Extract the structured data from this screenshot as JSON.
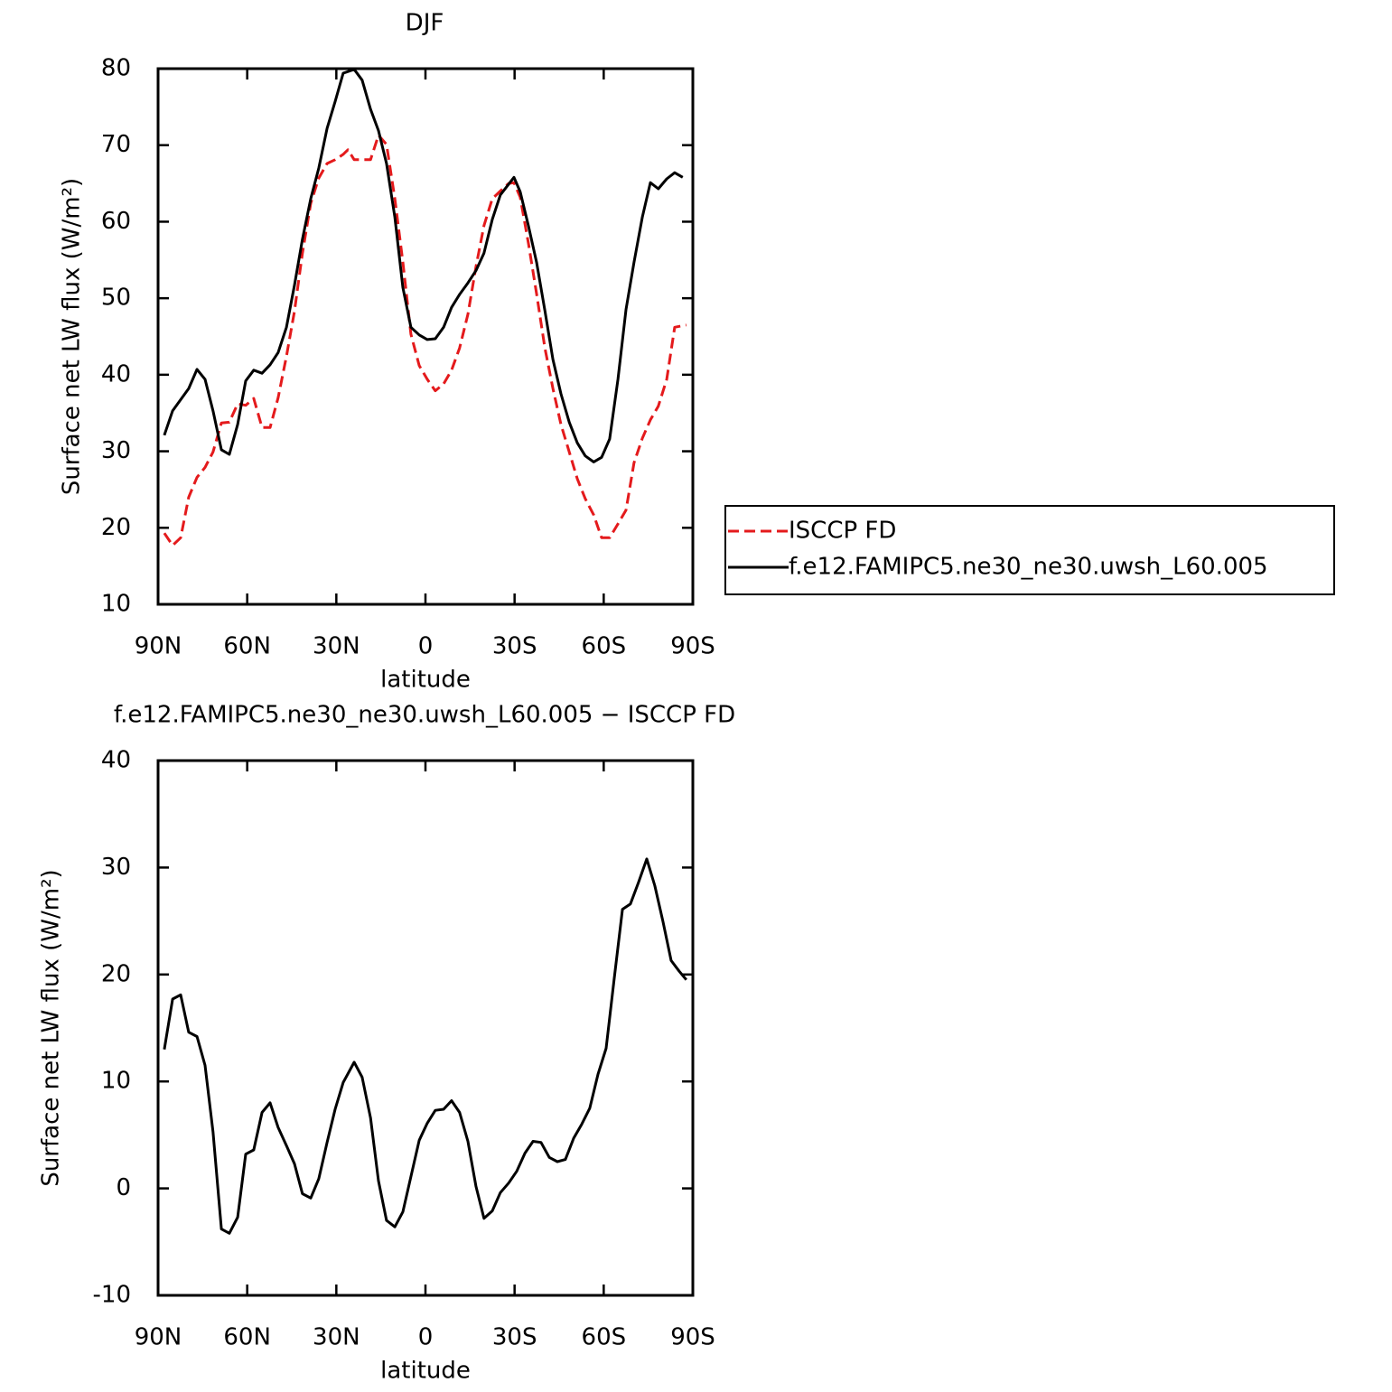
{
  "chart_data": [
    {
      "type": "line",
      "title": "DJF",
      "xlabel": "latitude",
      "ylabel": "Surface net LW flux (W/m²)",
      "xlim": [
        90,
        -90
      ],
      "xticks": [
        {
          "value": 90,
          "label": "90N"
        },
        {
          "value": 60,
          "label": "60N"
        },
        {
          "value": 30,
          "label": "30N"
        },
        0,
        {
          "value": -30,
          "label": "30S"
        },
        {
          "value": -60,
          "label": "60S"
        },
        {
          "value": -90,
          "label": "90S"
        }
      ],
      "ylim": [
        10,
        80
      ],
      "yticks": [
        10,
        20,
        30,
        40,
        50,
        60,
        70,
        80
      ],
      "legend": "right",
      "series": [
        {
          "name": "ISCCP FD",
          "color": "#e41a1c",
          "line_style": "dashed",
          "x": [
            87.9,
            85.1,
            82.4,
            79.7,
            76.9,
            74.2,
            71.5,
            68.7,
            66.0,
            63.2,
            60.5,
            57.8,
            55.0,
            52.3,
            49.6,
            46.8,
            44.1,
            41.4,
            38.6,
            35.9,
            33.1,
            30.4,
            27.7,
            26.1,
            24.0,
            21.3,
            18.5,
            15.8,
            13.1,
            10.3,
            7.6,
            4.9,
            2.1,
            -0.6,
            -3.3,
            -6.1,
            -8.8,
            -11.5,
            -14.3,
            -17.0,
            -19.7,
            -22.5,
            -25.2,
            -28.0,
            -29.8,
            -31.9,
            -34.7,
            -37.4,
            -40.2,
            -42.9,
            -45.6,
            -48.4,
            -51.1,
            -53.8,
            -56.6,
            -59.3,
            -62.0,
            -64.8,
            -67.5,
            -70.2,
            -73.0,
            -75.7,
            -78.4,
            -81.2,
            -83.9,
            -87.8
          ],
          "values": [
            19.3,
            17.7,
            18.7,
            24.0,
            26.6,
            27.9,
            29.9,
            33.7,
            33.8,
            36.2,
            36.0,
            36.9,
            33.1,
            33.1,
            37.0,
            42.4,
            48.3,
            55.9,
            62.4,
            65.7,
            67.6,
            68.1,
            68.8,
            69.4,
            68.1,
            68.1,
            68.1,
            71.3,
            70.1,
            63.0,
            54.7,
            45.3,
            41.2,
            39.4,
            37.9,
            38.8,
            40.6,
            43.5,
            47.9,
            54.1,
            59.5,
            63.0,
            64.0,
            65.0,
            65.1,
            63.2,
            57.1,
            50.6,
            43.5,
            38.2,
            33.5,
            29.9,
            26.4,
            23.8,
            21.7,
            18.7,
            18.7,
            20.5,
            22.3,
            28.5,
            31.7,
            34.1,
            35.9,
            39.4,
            46.2,
            46.5
          ]
        },
        {
          "name": "f.e12.FAMIPC5.ne30_ne30.uwsh_L60.005",
          "color": "#000000",
          "line_style": "solid",
          "x": [
            87.9,
            85.1,
            79.7,
            76.9,
            74.2,
            71.5,
            68.7,
            66.0,
            63.2,
            60.5,
            57.8,
            55.0,
            52.3,
            49.6,
            46.8,
            44.1,
            41.4,
            38.6,
            35.9,
            33.1,
            30.4,
            27.7,
            24.0,
            21.3,
            18.5,
            15.8,
            13.1,
            10.3,
            7.6,
            4.9,
            2.1,
            -0.6,
            -3.3,
            -6.1,
            -8.8,
            -11.5,
            -14.3,
            -17.0,
            -19.7,
            -22.5,
            -25.2,
            -28.0,
            -29.8,
            -31.9,
            -34.7,
            -37.4,
            -40.2,
            -42.9,
            -45.6,
            -48.4,
            -51.1,
            -53.8,
            -56.6,
            -59.3,
            -62.0,
            -64.8,
            -67.5,
            -70.2,
            -73.0,
            -75.7,
            -78.4,
            -81.2,
            -83.9,
            -86.6
          ],
          "values": [
            32.1,
            35.3,
            38.2,
            40.7,
            39.4,
            35.3,
            30.2,
            29.6,
            33.5,
            39.2,
            40.6,
            40.2,
            41.3,
            42.9,
            46.2,
            51.7,
            57.7,
            63.0,
            67.0,
            72.2,
            75.7,
            79.4,
            79.9,
            78.5,
            74.7,
            71.9,
            67.6,
            60.6,
            51.4,
            46.2,
            45.2,
            44.6,
            44.7,
            46.2,
            48.8,
            50.5,
            52.0,
            53.6,
            55.9,
            60.3,
            63.5,
            64.9,
            65.8,
            63.9,
            59.4,
            54.7,
            48.4,
            42.0,
            37.5,
            33.8,
            31.1,
            29.4,
            28.6,
            29.2,
            31.6,
            39.4,
            48.5,
            54.7,
            60.6,
            65.1,
            64.3,
            65.6,
            66.4,
            65.8
          ]
        }
      ]
    },
    {
      "type": "line",
      "title": "f.e12.FAMIPC5.ne30_ne30.uwsh_L60.005 − ISCCP FD",
      "xlabel": "latitude",
      "ylabel": "Surface net LW flux (W/m²)",
      "xlim": [
        90,
        -90
      ],
      "xticks": [
        {
          "value": 90,
          "label": "90N"
        },
        {
          "value": 60,
          "label": "60N"
        },
        {
          "value": 30,
          "label": "30N"
        },
        0,
        {
          "value": -30,
          "label": "30S"
        },
        {
          "value": -60,
          "label": "60S"
        },
        {
          "value": -90,
          "label": "90S"
        }
      ],
      "ylim": [
        -10,
        40
      ],
      "yticks": [
        -10,
        0,
        10,
        20,
        30,
        40
      ],
      "series": [
        {
          "color": "#000000",
          "line_style": "solid",
          "x": [
            87.9,
            85.1,
            82.4,
            79.7,
            76.9,
            74.2,
            71.5,
            68.7,
            66.0,
            63.2,
            60.5,
            57.8,
            55.0,
            52.3,
            49.6,
            46.8,
            44.1,
            41.4,
            38.6,
            35.9,
            33.1,
            30.4,
            27.7,
            24.0,
            21.3,
            18.5,
            15.8,
            13.1,
            10.3,
            7.6,
            4.9,
            2.1,
            -0.6,
            -3.3,
            -6.1,
            -8.8,
            -11.5,
            -14.3,
            -17.0,
            -19.7,
            -22.5,
            -25.2,
            -28.0,
            -30.7,
            -33.5,
            -36.2,
            -38.9,
            -41.7,
            -44.4,
            -47.1,
            -49.9,
            -52.6,
            -55.3,
            -58.1,
            -60.8,
            -63.5,
            -66.3,
            -69.0,
            -71.7,
            -74.5,
            -77.2,
            -79.9,
            -82.7,
            -85.4,
            -87.8
          ],
          "values": [
            13.0,
            17.7,
            18.1,
            14.6,
            14.2,
            11.5,
            5.3,
            -3.8,
            -4.2,
            -2.7,
            3.2,
            3.6,
            7.1,
            8.0,
            5.7,
            4.0,
            2.3,
            -0.5,
            -0.9,
            0.9,
            4.3,
            7.4,
            9.9,
            11.8,
            10.4,
            6.6,
            0.7,
            -3.0,
            -3.6,
            -2.2,
            1.1,
            4.5,
            6.1,
            7.3,
            7.4,
            8.2,
            7.1,
            4.4,
            0.2,
            -2.8,
            -2.1,
            -0.4,
            0.5,
            1.6,
            3.3,
            4.4,
            4.3,
            2.9,
            2.5,
            2.7,
            4.7,
            6.0,
            7.5,
            10.7,
            13.1,
            19.5,
            26.1,
            26.6,
            28.6,
            30.8,
            28.3,
            25.0,
            21.3,
            20.3,
            19.5
          ]
        }
      ]
    }
  ]
}
